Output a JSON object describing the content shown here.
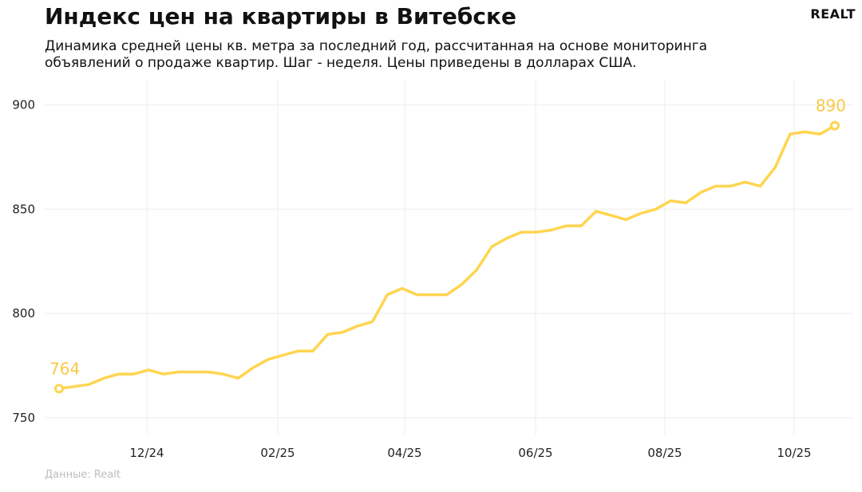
{
  "header": {
    "title": "Индекс цен на квартиры в Витебске",
    "subtitle": "Динамика средней цены кв. метра за последний год, рассчитанная на основе мониторинга объявлений о продаже квартир. Шаг - неделя. Цены приведены в долларах США.",
    "logo": "REALT"
  },
  "footer": {
    "source": "Данные: Realt"
  },
  "colors": {
    "line": "#FFD54F",
    "label": "#F9C846",
    "grid": "#eeeeee"
  },
  "chart_data": {
    "type": "line",
    "title": "Индекс цен на квартиры в Витебске",
    "xlabel": "",
    "ylabel": "",
    "x_tick_labels": [
      "12/24",
      "02/25",
      "04/25",
      "06/25",
      "08/25",
      "10/25"
    ],
    "y_ticks": [
      750,
      800,
      850,
      900
    ],
    "ylim": [
      742,
      912
    ],
    "grid": true,
    "series": [
      {
        "values": [
          764,
          765,
          766,
          769,
          771,
          771,
          773,
          771,
          772,
          772,
          772,
          771,
          769,
          774,
          778,
          780,
          782,
          782,
          790,
          791,
          794,
          796,
          809,
          812,
          809,
          809,
          809,
          814,
          821,
          832,
          836,
          839,
          839,
          840,
          842,
          842,
          849,
          847,
          845,
          848,
          850,
          854,
          853,
          858,
          861,
          861,
          863,
          861,
          870,
          886,
          887,
          886,
          890
        ]
      }
    ],
    "annotations": [
      {
        "text": "764",
        "point": "first"
      },
      {
        "text": "890",
        "point": "last"
      }
    ]
  }
}
